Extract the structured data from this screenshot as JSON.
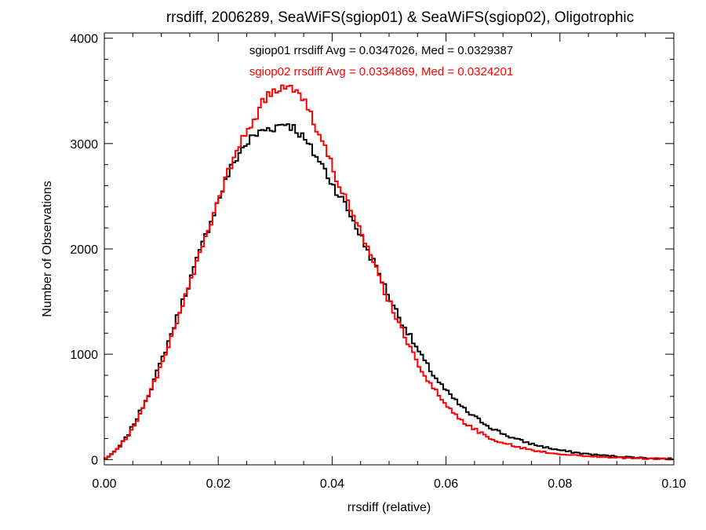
{
  "chart_data": {
    "type": "step-histogram",
    "title": "rrsdiff, 2006289, SeaWiFS(sgiop01) & SeaWiFS(sgiop02), Oligotrophic",
    "xlabel": "rrsdiff (relative)",
    "ylabel": "Number of Observations",
    "xlim": [
      0.0,
      0.1
    ],
    "ylim": [
      -50,
      4050
    ],
    "x_ticks": [
      {
        "value": 0.0,
        "label": "0.00"
      },
      {
        "value": 0.02,
        "label": "0.02"
      },
      {
        "value": 0.04,
        "label": "0.04"
      },
      {
        "value": 0.06,
        "label": "0.06"
      },
      {
        "value": 0.08,
        "label": "0.08"
      },
      {
        "value": 0.1,
        "label": "0.10"
      }
    ],
    "y_ticks": [
      {
        "value": 0,
        "label": "0"
      },
      {
        "value": 1000,
        "label": "1000"
      },
      {
        "value": 2000,
        "label": "2000"
      },
      {
        "value": 3000,
        "label": "3000"
      },
      {
        "value": 4000,
        "label": "4000"
      }
    ],
    "bin_width": 0.0005,
    "series": [
      {
        "name": "sgiop01",
        "color": "#000000",
        "legend": "sgiop01 rrsdiff Avg = 0.0347026, Med = 0.0329387",
        "points": [
          [
            0.0,
            0
          ],
          [
            0.002,
            80
          ],
          [
            0.004,
            220
          ],
          [
            0.006,
            420
          ],
          [
            0.008,
            650
          ],
          [
            0.01,
            930
          ],
          [
            0.012,
            1230
          ],
          [
            0.014,
            1540
          ],
          [
            0.016,
            1850
          ],
          [
            0.018,
            2160
          ],
          [
            0.02,
            2460
          ],
          [
            0.022,
            2740
          ],
          [
            0.024,
            2940
          ],
          [
            0.026,
            3060
          ],
          [
            0.028,
            3130
          ],
          [
            0.03,
            3160
          ],
          [
            0.032,
            3200
          ],
          [
            0.034,
            3120
          ],
          [
            0.036,
            2970
          ],
          [
            0.038,
            2820
          ],
          [
            0.04,
            2620
          ],
          [
            0.042,
            2450
          ],
          [
            0.044,
            2240
          ],
          [
            0.046,
            2010
          ],
          [
            0.048,
            1800
          ],
          [
            0.05,
            1550
          ],
          [
            0.052,
            1330
          ],
          [
            0.054,
            1140
          ],
          [
            0.056,
            950
          ],
          [
            0.058,
            790
          ],
          [
            0.06,
            650
          ],
          [
            0.062,
            540
          ],
          [
            0.064,
            440
          ],
          [
            0.066,
            370
          ],
          [
            0.068,
            300
          ],
          [
            0.07,
            245
          ],
          [
            0.072,
            200
          ],
          [
            0.074,
            165
          ],
          [
            0.076,
            135
          ],
          [
            0.078,
            110
          ],
          [
            0.08,
            88
          ],
          [
            0.082,
            72
          ],
          [
            0.084,
            58
          ],
          [
            0.086,
            46
          ],
          [
            0.088,
            38
          ],
          [
            0.09,
            30
          ],
          [
            0.092,
            24
          ],
          [
            0.094,
            18
          ],
          [
            0.096,
            14
          ],
          [
            0.098,
            10
          ],
          [
            0.1,
            8
          ]
        ]
      },
      {
        "name": "sgiop02",
        "color": "#ff0000",
        "legend": "sgiop02 rrsdiff Avg = 0.0334869, Med = 0.0324201",
        "points": [
          [
            0.0,
            0
          ],
          [
            0.002,
            80
          ],
          [
            0.004,
            210
          ],
          [
            0.006,
            400
          ],
          [
            0.008,
            630
          ],
          [
            0.01,
            900
          ],
          [
            0.012,
            1200
          ],
          [
            0.014,
            1510
          ],
          [
            0.016,
            1820
          ],
          [
            0.018,
            2140
          ],
          [
            0.02,
            2450
          ],
          [
            0.022,
            2760
          ],
          [
            0.024,
            3010
          ],
          [
            0.026,
            3210
          ],
          [
            0.028,
            3400
          ],
          [
            0.03,
            3510
          ],
          [
            0.032,
            3560
          ],
          [
            0.034,
            3530
          ],
          [
            0.036,
            3310
          ],
          [
            0.038,
            3050
          ],
          [
            0.04,
            2780
          ],
          [
            0.042,
            2530
          ],
          [
            0.044,
            2280
          ],
          [
            0.046,
            2020
          ],
          [
            0.048,
            1770
          ],
          [
            0.05,
            1500
          ],
          [
            0.052,
            1250
          ],
          [
            0.054,
            1030
          ],
          [
            0.056,
            830
          ],
          [
            0.058,
            660
          ],
          [
            0.06,
            520
          ],
          [
            0.062,
            410
          ],
          [
            0.064,
            320
          ],
          [
            0.066,
            255
          ],
          [
            0.068,
            200
          ],
          [
            0.07,
            160
          ],
          [
            0.072,
            128
          ],
          [
            0.074,
            102
          ],
          [
            0.076,
            82
          ],
          [
            0.078,
            66
          ],
          [
            0.08,
            53
          ],
          [
            0.082,
            43
          ],
          [
            0.084,
            35
          ],
          [
            0.086,
            28
          ],
          [
            0.088,
            23
          ],
          [
            0.09,
            18
          ],
          [
            0.092,
            14
          ],
          [
            0.094,
            11
          ],
          [
            0.096,
            8
          ],
          [
            0.098,
            6
          ],
          [
            0.1,
            5
          ]
        ]
      }
    ]
  }
}
